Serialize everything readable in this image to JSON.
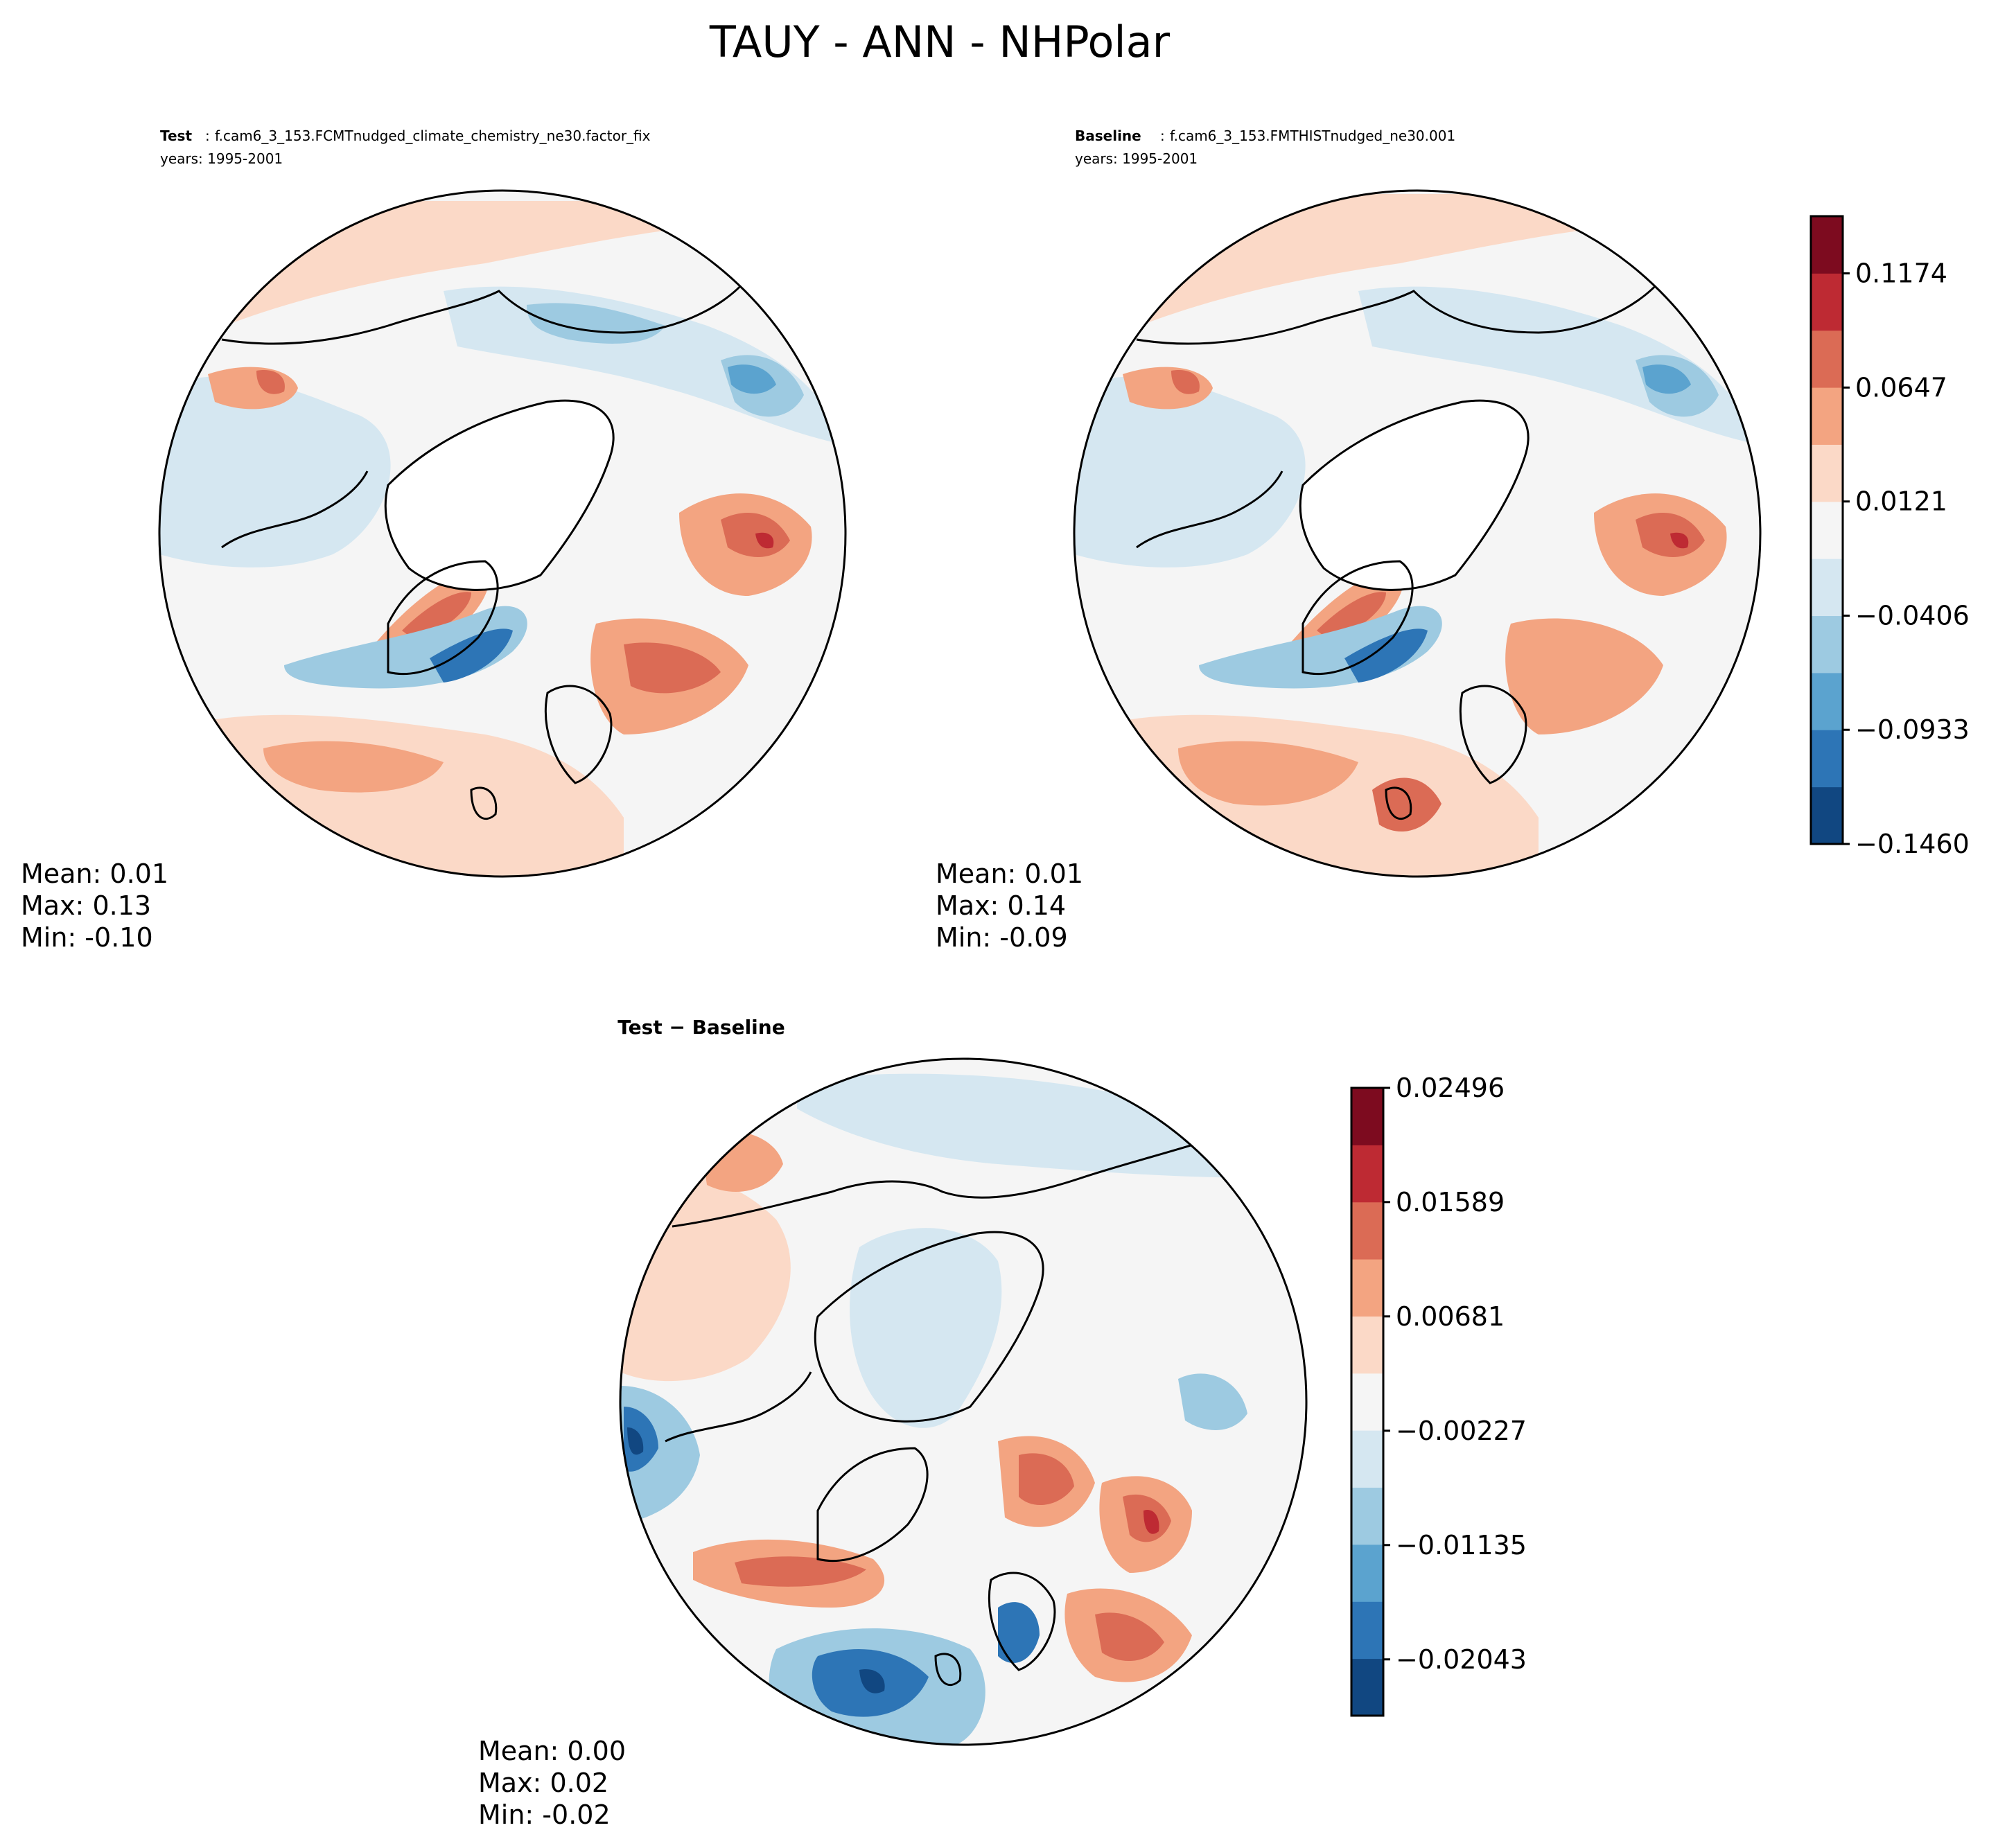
{
  "figure": {
    "title": "TAUY - ANN - NHPolar"
  },
  "chart_data": [
    {
      "type": "heatmap",
      "projection": "north-polar-stereographic",
      "label": "Test",
      "case": "f.cam6_3_153.FCMTnudged_climate_chemistry_ne30.factor_fix",
      "years": "years: 1995-2001",
      "stats": {
        "mean": "Mean:  0.01",
        "max": "Max:  0.13",
        "min": "Min: -0.10"
      },
      "colorbar_shared_with": "Baseline"
    },
    {
      "type": "heatmap",
      "projection": "north-polar-stereographic",
      "label": "Baseline",
      "case": "f.cam6_3_153.FMTHISTnudged_ne30.001",
      "years": "years: 1995-2001",
      "stats": {
        "mean": "Mean:  0.01",
        "max": "Max:  0.14",
        "min": "Min: -0.09"
      },
      "colorbar": {
        "ticks": [
          "−0.1460",
          "−0.0933",
          "−0.0406",
          "0.0121",
          "0.0647",
          "0.1174"
        ],
        "tick_values": [
          -0.146,
          -0.0933,
          -0.0406,
          0.0121,
          0.0647,
          0.1174
        ],
        "vmin": -0.146,
        "vmax": 0.1438,
        "levels": 11
      }
    },
    {
      "type": "heatmap",
      "projection": "north-polar-stereographic",
      "label": "Test − Baseline",
      "stats": {
        "mean": "Mean:  0.00",
        "max": "Max:  0.02",
        "min": "Min: -0.02"
      },
      "colorbar": {
        "ticks": [
          "−0.02043",
          "−0.01135",
          "−0.00227",
          "0.00681",
          "0.01589",
          "0.02496"
        ],
        "tick_values": [
          -0.02043,
          -0.01135,
          -0.00227,
          0.00681,
          0.01589,
          0.02496
        ],
        "vmin": -0.0249,
        "vmax": 0.02496,
        "levels": 11
      }
    }
  ],
  "colormap": [
    "#114781",
    "#2d75b6",
    "#5ba3cf",
    "#9dcae1",
    "#d5e7f1",
    "#f5f5f5",
    "#fbd9c7",
    "#f3a481",
    "#db6b55",
    "#be2a33",
    "#7d0b1f"
  ],
  "landcolor": "#ffffff",
  "coastline_color": "#000000"
}
